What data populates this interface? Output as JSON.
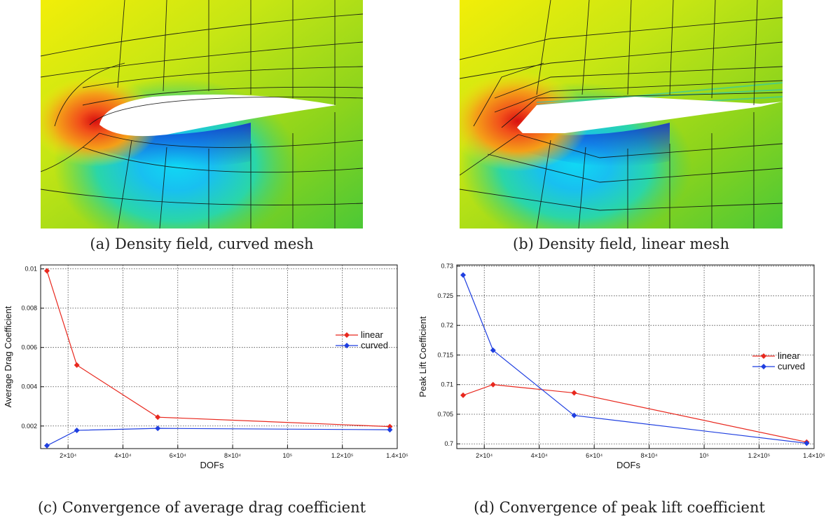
{
  "captions": {
    "a": "(a) Density field, curved mesh",
    "b": "(b) Density field, linear mesh",
    "c": "(c) Convergence of average drag coefficient",
    "d": "(d) Convergence of peak lift coefficient"
  },
  "colors": {
    "linear": "#e8281e",
    "curved": "#1f3fe0"
  },
  "chart_data": [
    {
      "type": "line",
      "title": "",
      "xlabel": "DOFs",
      "ylabel": "Average Drag Coefficient",
      "xlim": [
        10000,
        140000
      ],
      "ylim": [
        0.00085,
        0.0102
      ],
      "x_ticks": [
        20000,
        40000,
        60000,
        80000,
        100000,
        120000,
        140000
      ],
      "x_tick_labels": [
        "2×10⁴",
        "4×10⁴",
        "6×10⁴",
        "8×10⁴",
        "10⁵",
        "1.2×10⁵",
        "1.4×10⁵"
      ],
      "y_ticks": [
        0.002,
        0.004,
        0.006,
        0.008,
        0.01
      ],
      "y_tick_labels": [
        "0.002",
        "0.004",
        "0.006",
        "0.008",
        "0.01"
      ],
      "grid": true,
      "legend_position": "right",
      "series": [
        {
          "name": "linear",
          "x": [
            12300,
            23200,
            52700,
            137300
          ],
          "y": [
            0.0099,
            0.0051,
            0.00245,
            0.00197
          ]
        },
        {
          "name": "curved",
          "x": [
            12300,
            23200,
            52700,
            137300
          ],
          "y": [
            0.001,
            0.00178,
            0.00188,
            0.00181
          ]
        }
      ]
    },
    {
      "type": "line",
      "title": "",
      "xlabel": "DOFs",
      "ylabel": "Peak Lift Coefficient",
      "xlim": [
        10000,
        140000
      ],
      "ylim": [
        0.6992,
        0.7302
      ],
      "x_ticks": [
        20000,
        40000,
        60000,
        80000,
        100000,
        120000,
        140000
      ],
      "x_tick_labels": [
        "2×10⁴",
        "4×10⁴",
        "6×10⁴",
        "8×10⁴",
        "10⁵",
        "1.2×10⁵",
        "1.4×10⁵"
      ],
      "y_ticks": [
        0.7,
        0.705,
        0.71,
        0.715,
        0.72,
        0.725,
        0.73
      ],
      "y_tick_labels": [
        "0.7",
        "0.705",
        "0.71",
        "0.715",
        "0.72",
        "0.725",
        "0.73"
      ],
      "grid": true,
      "legend_position": "right",
      "series": [
        {
          "name": "linear",
          "x": [
            12300,
            23200,
            52700,
            137300
          ],
          "y": [
            0.7082,
            0.71,
            0.7086,
            0.7003
          ]
        },
        {
          "name": "curved",
          "x": [
            12300,
            23200,
            52700,
            137300
          ],
          "y": [
            0.7285,
            0.7158,
            0.7048,
            0.7001
          ]
        }
      ]
    }
  ]
}
